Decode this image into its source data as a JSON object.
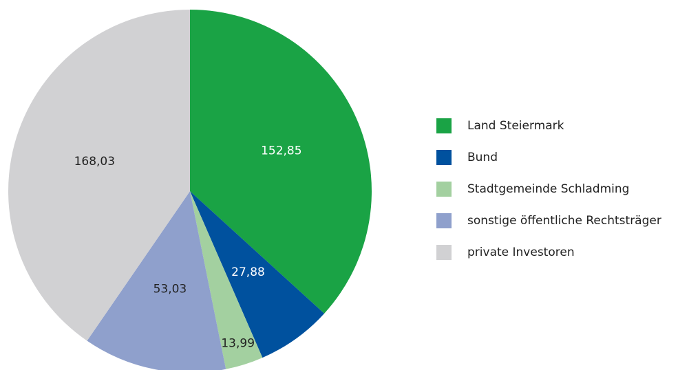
{
  "chart_data": {
    "type": "pie",
    "categories": [
      "Land Steiermark",
      "Bund",
      "Stadtgemeinde Schladming",
      "sonstige öffentliche Rechtsträger",
      "private Investoren"
    ],
    "values": [
      152.85,
      27.88,
      13.99,
      53.03,
      168.03
    ],
    "value_labels": [
      "152,85",
      "27,88",
      "13,99",
      "53,03",
      "168,03"
    ],
    "colors": [
      "#1aa345",
      "#00519e",
      "#a3d0a0",
      "#8fa0cc",
      "#d1d1d3"
    ],
    "legend": "right"
  }
}
